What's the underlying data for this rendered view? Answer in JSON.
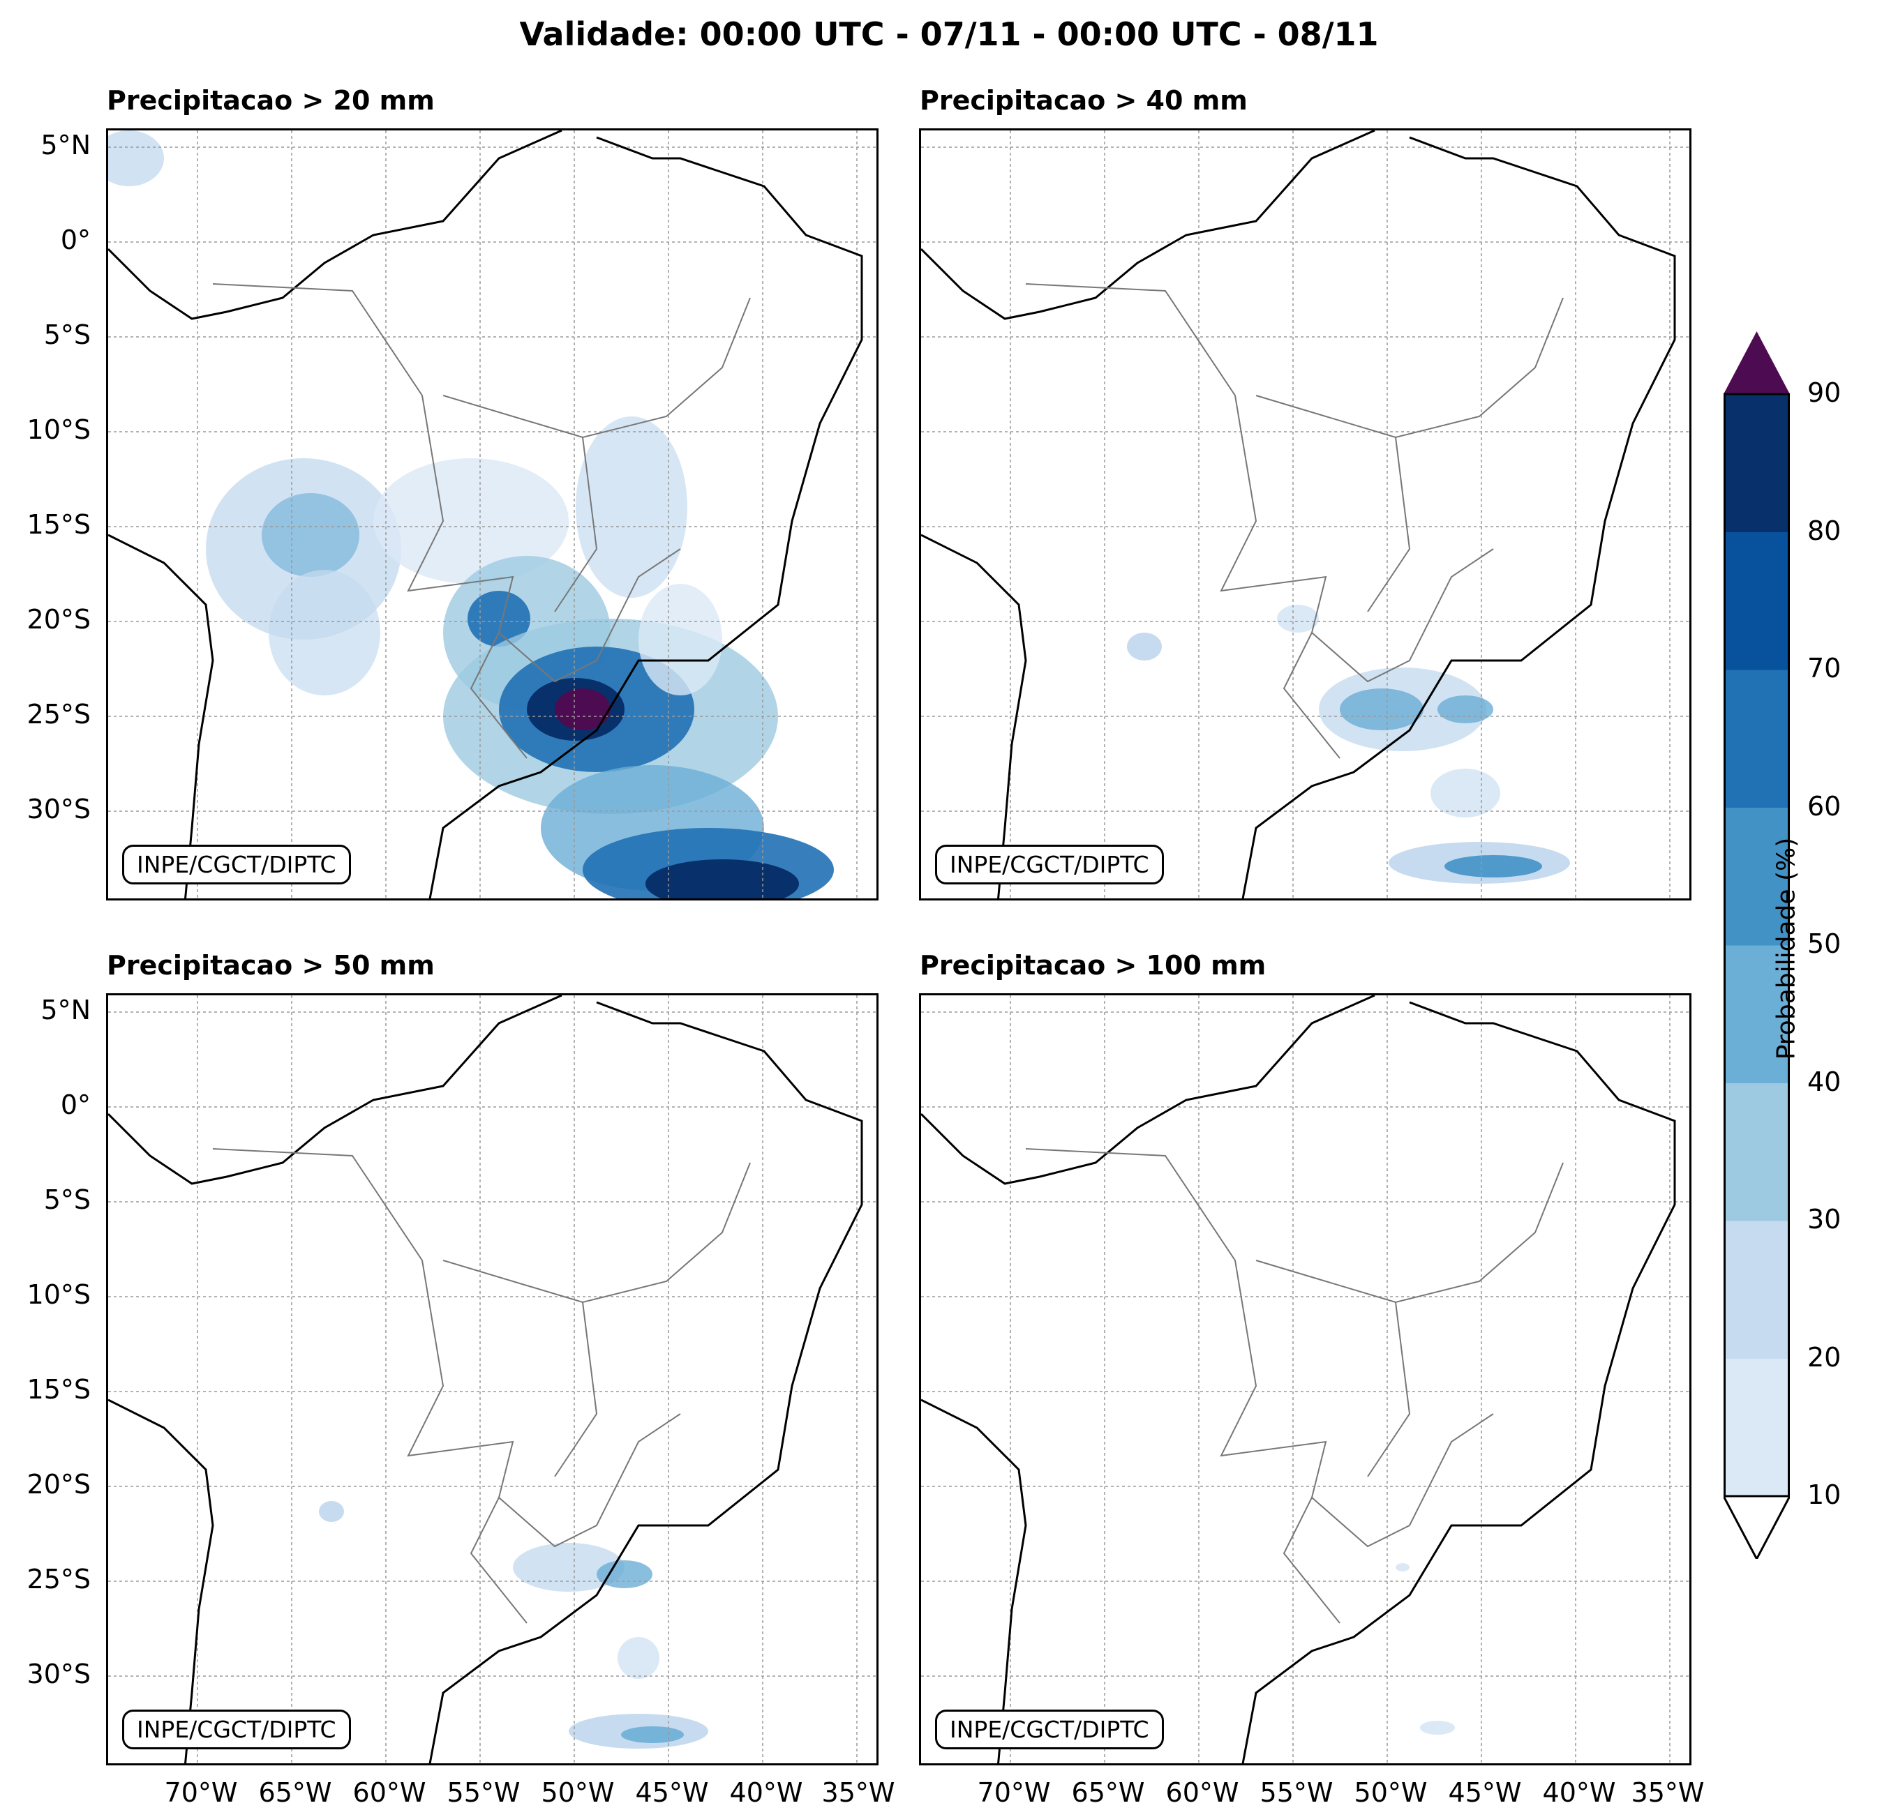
{
  "title": "Validade: 00:00 UTC - 07/11 - 00:00 UTC - 08/11",
  "panels": [
    {
      "title": "Precipitacao > 20 mm",
      "credit": "INPE/CGCT/DIPTC"
    },
    {
      "title": "Precipitacao > 40 mm",
      "credit": "INPE/CGCT/DIPTC"
    },
    {
      "title": "Precipitacao > 50 mm",
      "credit": "INPE/CGCT/DIPTC"
    },
    {
      "title": "Precipitacao > 100 mm",
      "credit": "INPE/CGCT/DIPTC"
    }
  ],
  "lat_labels": [
    "5°N",
    "0°",
    "5°S",
    "10°S",
    "15°S",
    "20°S",
    "25°S",
    "30°S"
  ],
  "lon_labels": [
    "70°W",
    "65°W",
    "60°W",
    "55°W",
    "50°W",
    "45°W",
    "40°W",
    "35°W"
  ],
  "colorbar": {
    "label": "Probabilidade (%)",
    "ticks": [
      "10",
      "20",
      "30",
      "40",
      "50",
      "60",
      "70",
      "80",
      "90"
    ],
    "colors": [
      "#dbe9f6",
      "#c6dbef",
      "#9ecae1",
      "#6baed6",
      "#4292c6",
      "#2171b5",
      "#08519c",
      "#08306b"
    ],
    "over_color": "#4d0b52",
    "under_color": "#ffffff"
  }
}
